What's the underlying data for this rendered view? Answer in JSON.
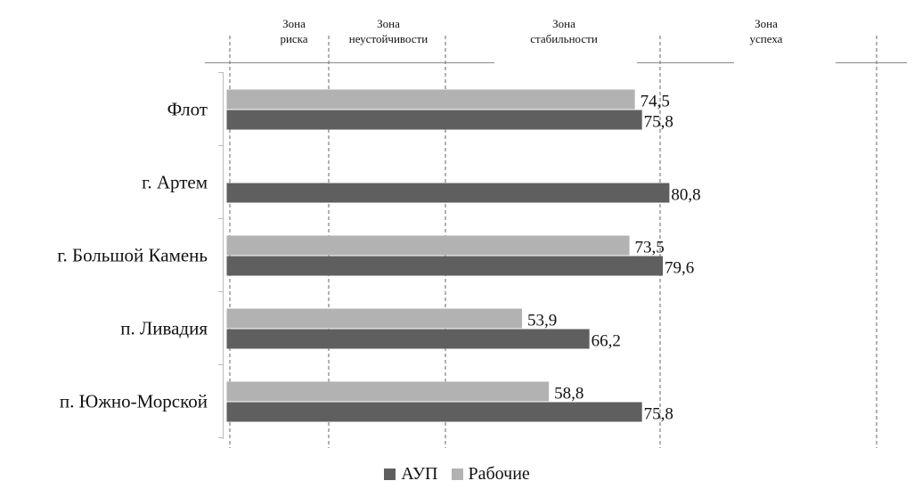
{
  "chart_data": {
    "type": "bar",
    "orientation": "horizontal",
    "categories": [
      "Флот",
      "г. Артем",
      "г. Большой Камень",
      "п. Ливадия",
      "п. Южно-Морской"
    ],
    "series": [
      {
        "name": "АУП",
        "color": "#5f5f5f",
        "values": [
          75.8,
          80.8,
          79.6,
          66.2,
          75.8
        ]
      },
      {
        "name": "Рабочие",
        "color": "#b2b2b2",
        "values": [
          74.5,
          null,
          73.5,
          53.9,
          58.8
        ]
      }
    ],
    "value_labels": {
      "АУП": [
        "75,8",
        "80,8",
        "79,6",
        "66,2",
        "75,8"
      ],
      "Рабочие": [
        "74,5",
        "",
        "73,5",
        "53,9",
        "58,8"
      ]
    },
    "zones": [
      {
        "line1": "Зона",
        "line2": "риска"
      },
      {
        "line1": "Зона",
        "line2": "неустойчивости"
      },
      {
        "line1": "Зона",
        "line2": "стабильности"
      },
      {
        "line1": "Зона",
        "line2": "успеха"
      }
    ],
    "zone_boundaries": [
      0,
      20,
      40,
      80,
      120
    ],
    "xlim": [
      0,
      120
    ],
    "legend": {
      "position": "bottom"
    },
    "grid": false
  }
}
